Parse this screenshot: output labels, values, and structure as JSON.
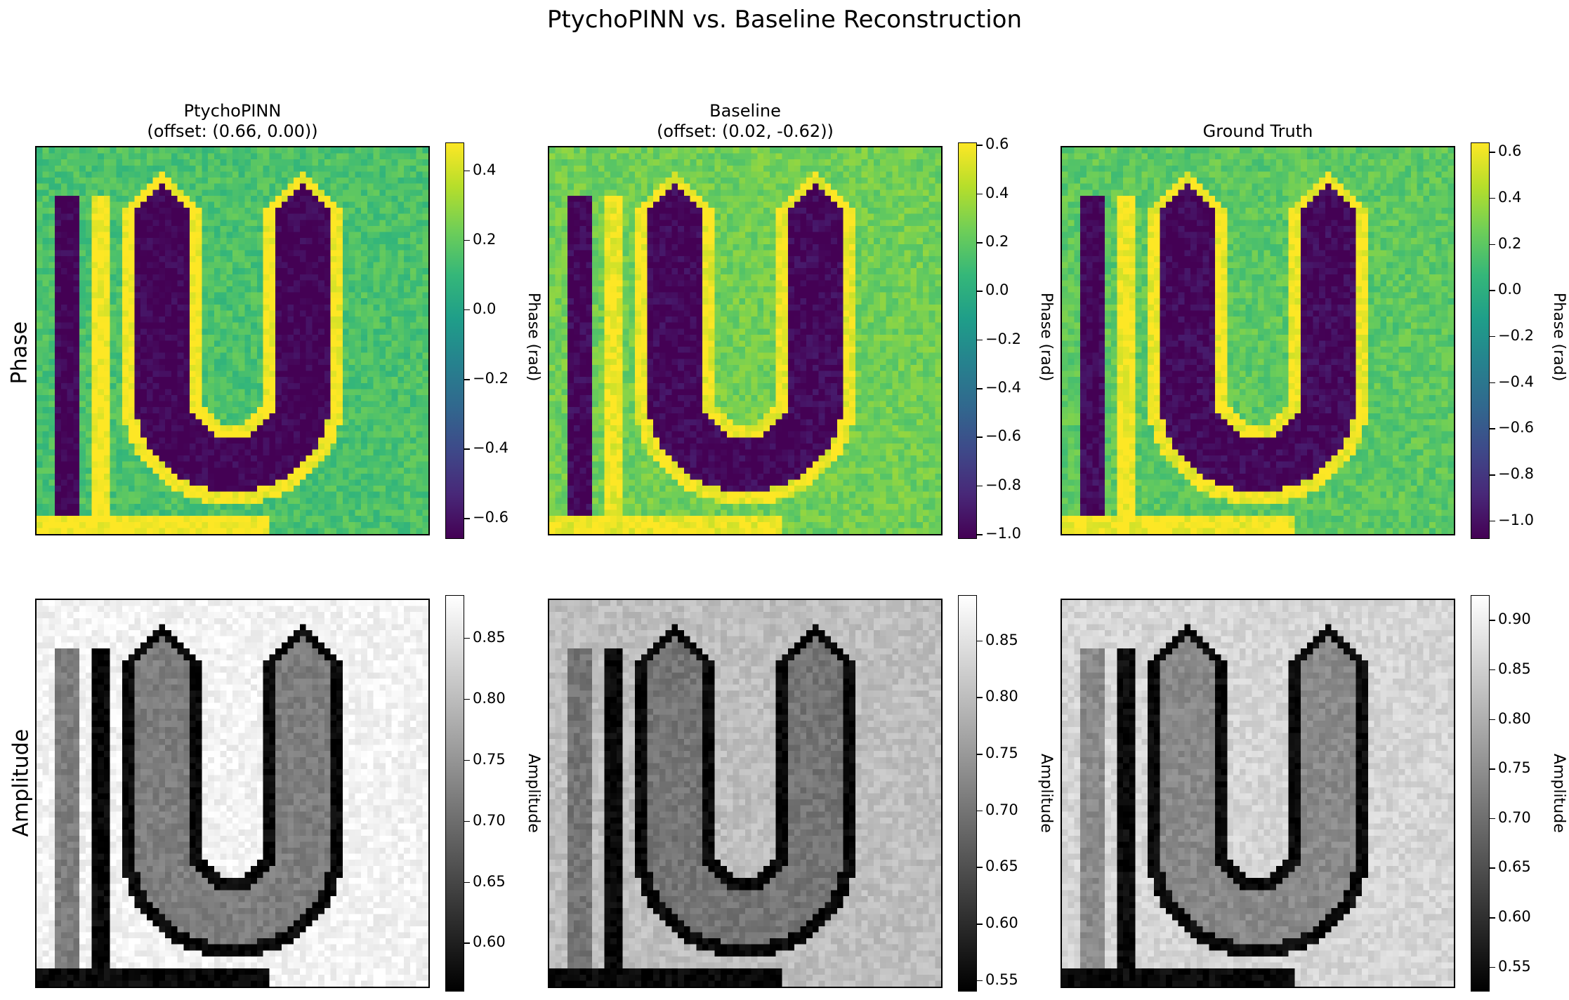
{
  "figure": {
    "title": "PtychoPINN vs. Baseline Reconstruction",
    "row_labels": [
      "Phase",
      "Amplitude"
    ]
  },
  "chart_data": [
    {
      "type": "heatmap",
      "row": "Phase",
      "col": 0,
      "title": "PtychoPINN\n(offset: (0.66, 0.00))",
      "colormap": "viridis",
      "colorbar_label": "Phase (rad)",
      "vmin": -0.66,
      "vmax": 0.48,
      "ticks": [
        -0.6,
        -0.4,
        -0.2,
        0.0,
        0.2,
        0.4
      ],
      "tick_labels": [
        "−0.6",
        "−0.4",
        "−0.2",
        "0.0",
        "0.2",
        "0.4"
      ],
      "background": 0.15,
      "u_value": -0.66,
      "rim_value": 0.48,
      "left_bar": true
    },
    {
      "type": "heatmap",
      "row": "Phase",
      "col": 1,
      "title": "Baseline\n(offset: (0.02, -0.62))",
      "colormap": "viridis",
      "colorbar_label": "Phase (rad)",
      "vmin": -1.02,
      "vmax": 0.61,
      "ticks": [
        -1.0,
        -0.8,
        -0.6,
        -0.4,
        -0.2,
        0.0,
        0.2,
        0.4,
        0.6
      ],
      "tick_labels": [
        "−1.0",
        "−0.8",
        "−0.6",
        "−0.4",
        "−0.2",
        "0.0",
        "0.2",
        "0.4",
        "0.6"
      ],
      "background": 0.25,
      "u_value": -1.0,
      "rim_value": 0.58,
      "left_bar": true
    },
    {
      "type": "heatmap",
      "row": "Phase",
      "col": 2,
      "title": "Ground Truth",
      "colormap": "viridis",
      "colorbar_label": "Phase (rad)",
      "vmin": -1.08,
      "vmax": 0.64,
      "ticks": [
        -1.0,
        -0.8,
        -0.6,
        -0.4,
        -0.2,
        0.0,
        0.2,
        0.4,
        0.6
      ],
      "tick_labels": [
        "−1.0",
        "−0.8",
        "−0.6",
        "−0.4",
        "−0.2",
        "0.0",
        "0.2",
        "0.4",
        "0.6"
      ],
      "background": 0.2,
      "u_value": -1.05,
      "rim_value": 0.62,
      "left_bar": true
    },
    {
      "type": "heatmap",
      "row": "Amplitude",
      "col": 0,
      "title": "",
      "colormap": "greys",
      "colorbar_label": "Amplitude",
      "vmin": 0.56,
      "vmax": 0.885,
      "ticks": [
        0.6,
        0.65,
        0.7,
        0.75,
        0.8,
        0.85
      ],
      "tick_labels": [
        "0.60",
        "0.65",
        "0.70",
        "0.75",
        "0.80",
        "0.85"
      ],
      "background": 0.87,
      "u_value": 0.72,
      "rim_value": 0.57,
      "left_bar": true
    },
    {
      "type": "heatmap",
      "row": "Amplitude",
      "col": 1,
      "title": "",
      "colormap": "greys",
      "colorbar_label": "Amplitude",
      "vmin": 0.54,
      "vmax": 0.89,
      "ticks": [
        0.55,
        0.6,
        0.65,
        0.7,
        0.75,
        0.8,
        0.85
      ],
      "tick_labels": [
        "0.55",
        "0.60",
        "0.65",
        "0.70",
        "0.75",
        "0.80",
        "0.85"
      ],
      "background": 0.8,
      "u_value": 0.7,
      "rim_value": 0.55,
      "left_bar": true
    },
    {
      "type": "heatmap",
      "row": "Amplitude",
      "col": 2,
      "title": "",
      "colormap": "greys",
      "colorbar_label": "Amplitude",
      "vmin": 0.525,
      "vmax": 0.925,
      "ticks": [
        0.55,
        0.6,
        0.65,
        0.7,
        0.75,
        0.8,
        0.85,
        0.9
      ],
      "tick_labels": [
        "0.55",
        "0.60",
        "0.65",
        "0.70",
        "0.75",
        "0.80",
        "0.85",
        "0.90"
      ],
      "background": 0.86,
      "u_value": 0.74,
      "rim_value": 0.54,
      "left_bar": true
    }
  ]
}
